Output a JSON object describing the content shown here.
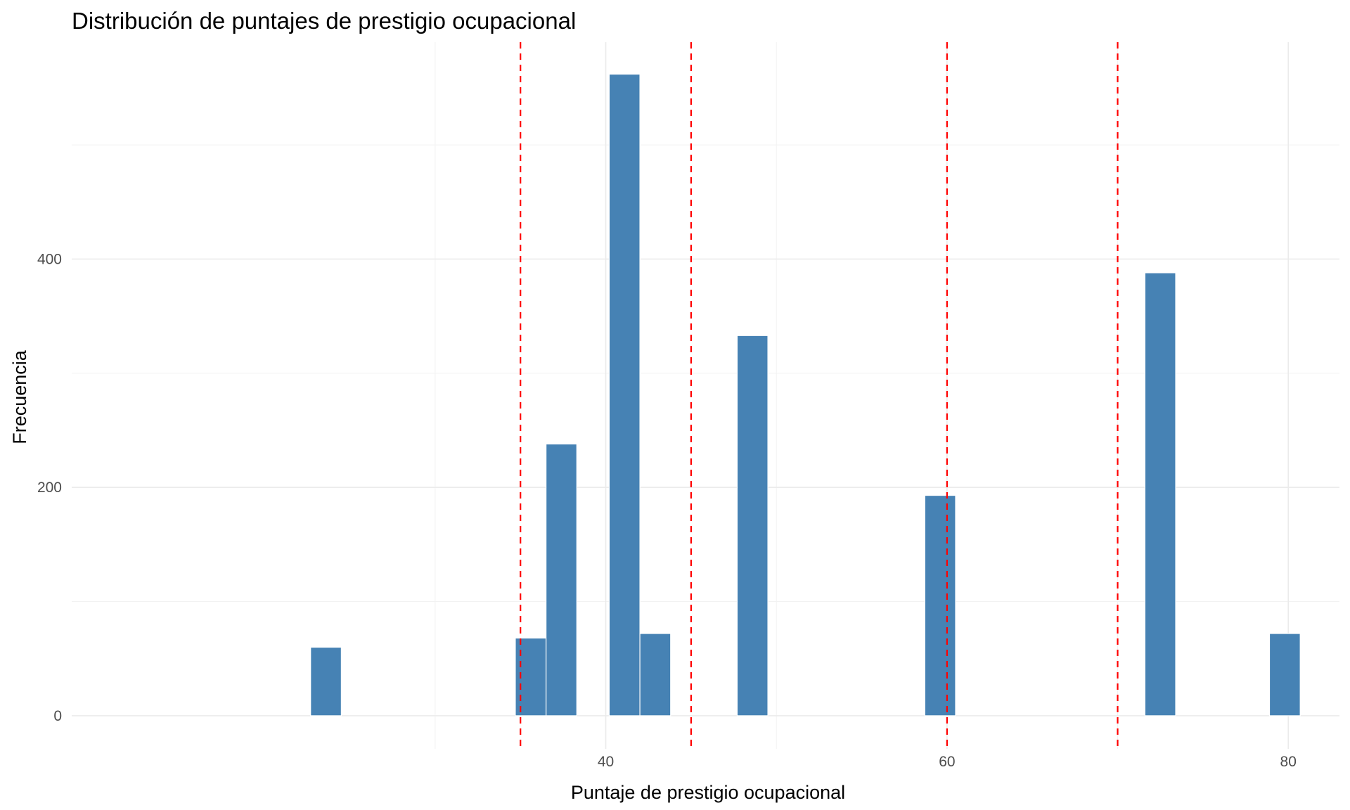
{
  "chart_data": {
    "type": "bar",
    "title": "Distribución de puntajes de prestigio ocupacional",
    "xlabel": "Puntaje de prestigio ocupacional",
    "ylabel": "Frecuencia",
    "xlim": [
      8.7,
      83
    ],
    "ylim": [
      -29,
      590
    ],
    "x_ticks": [
      40,
      60,
      80
    ],
    "y_ticks": [
      0,
      200,
      400
    ],
    "x_minor": [
      30,
      50,
      70
    ],
    "y_minor": [
      100,
      300,
      500
    ],
    "bin_width": 1.8,
    "bins": [
      {
        "x": 23.6,
        "count": 60
      },
      {
        "x": 35.6,
        "count": 68
      },
      {
        "x": 37.4,
        "count": 238
      },
      {
        "x": 41.1,
        "count": 562
      },
      {
        "x": 42.9,
        "count": 72
      },
      {
        "x": 48.6,
        "count": 333
      },
      {
        "x": 59.6,
        "count": 193
      },
      {
        "x": 72.5,
        "count": 388
      },
      {
        "x": 79.8,
        "count": 72
      }
    ],
    "reference_lines": [
      35,
      45,
      60,
      70
    ],
    "bar_color": "#4682B4",
    "reference_line_color": "#FF0000",
    "grid": true,
    "legend": "none"
  }
}
